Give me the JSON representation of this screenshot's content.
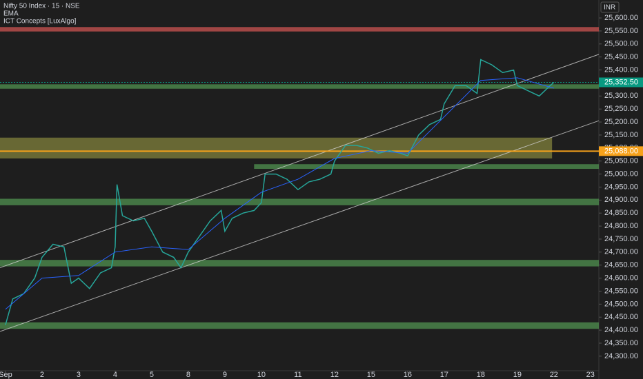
{
  "chart_data": {
    "type": "line",
    "title": "Nifty 50 Index · 15 · NSE",
    "indicators": [
      "EMA",
      "ICT Concepts [LuxAlgo]"
    ],
    "currency": "INR",
    "xlim": [
      -0.15,
      16.23
    ],
    "xticks": [
      {
        "value": 0,
        "label": "Sep"
      },
      {
        "value": 1,
        "label": "2"
      },
      {
        "value": 2,
        "label": "3"
      },
      {
        "value": 3,
        "label": "4"
      },
      {
        "value": 4,
        "label": "5"
      },
      {
        "value": 5,
        "label": "8"
      },
      {
        "value": 6,
        "label": "9"
      },
      {
        "value": 7,
        "label": "10"
      },
      {
        "value": 8,
        "label": "11"
      },
      {
        "value": 9,
        "label": "12"
      },
      {
        "value": 10,
        "label": "15"
      },
      {
        "value": 11,
        "label": "16"
      },
      {
        "value": 12,
        "label": "17"
      },
      {
        "value": 13,
        "label": "18"
      },
      {
        "value": 14,
        "label": "19"
      },
      {
        "value": 15,
        "label": "22"
      },
      {
        "value": 16,
        "label": "23"
      }
    ],
    "ylim": [
      24244,
      25669
    ],
    "yticks": [
      {
        "value": 24300,
        "label": "24,300.00"
      },
      {
        "value": 24350,
        "label": "24,350.00"
      },
      {
        "value": 24400,
        "label": "24,400.00"
      },
      {
        "value": 24450,
        "label": "24,450.00"
      },
      {
        "value": 24500,
        "label": "24,500.00"
      },
      {
        "value": 24550,
        "label": "24,550.00"
      },
      {
        "value": 24600,
        "label": "24,600.00"
      },
      {
        "value": 24650,
        "label": "24,650.00"
      },
      {
        "value": 24700,
        "label": "24,700.00"
      },
      {
        "value": 24750,
        "label": "24,750.00"
      },
      {
        "value": 24800,
        "label": "24,800.00"
      },
      {
        "value": 24850,
        "label": "24,850.00"
      },
      {
        "value": 24900,
        "label": "24,900.00"
      },
      {
        "value": 24950,
        "label": "24,950.00"
      },
      {
        "value": 25000,
        "label": "25,000.00"
      },
      {
        "value": 25050,
        "label": "25,050.00"
      },
      {
        "value": 25100,
        "label": "25,100.00"
      },
      {
        "value": 25150,
        "label": "25,150.00"
      },
      {
        "value": 25200,
        "label": "25,200.00"
      },
      {
        "value": 25250,
        "label": "25,250.00"
      },
      {
        "value": 25300,
        "label": "25,300.00"
      },
      {
        "value": 25350,
        "label": "25,350.00"
      },
      {
        "value": 25400,
        "label": "25,400.00"
      },
      {
        "value": 25450,
        "label": "25,450.00"
      },
      {
        "value": 25500,
        "label": "25,500.00"
      },
      {
        "value": 25550,
        "label": "25,550.00"
      },
      {
        "value": 25600,
        "label": "25,600.00"
      }
    ],
    "series": [
      {
        "name": "Nifty 50 Index",
        "color": "#26a69a",
        "x": [
          0,
          0.2,
          0.5,
          0.8,
          1,
          1.3,
          1.6,
          1.7,
          1.8,
          2,
          2.3,
          2.6,
          2.9,
          3,
          3.05,
          3.2,
          3.5,
          3.8,
          4,
          4.3,
          4.6,
          4.8,
          5,
          5.3,
          5.6,
          5.9,
          6,
          6.2,
          6.5,
          6.8,
          7,
          7.1,
          7.4,
          7.7,
          8,
          8.3,
          8.6,
          8.9,
          9,
          9.3,
          9.6,
          9.9,
          10.2,
          10.5,
          10.8,
          11,
          11.3,
          11.6,
          11.9,
          12,
          12.3,
          12.6,
          12.9,
          13,
          13.3,
          13.6,
          13.9,
          14,
          14.3,
          14.6,
          14.9,
          15
        ],
        "values": [
          24420,
          24520,
          24540,
          24600,
          24680,
          24730,
          24720,
          24650,
          24580,
          24600,
          24560,
          24620,
          24640,
          24720,
          24960,
          24840,
          24820,
          24830,
          24780,
          24700,
          24680,
          24640,
          24700,
          24760,
          24820,
          24860,
          24780,
          24830,
          24850,
          24860,
          24890,
          25000,
          25000,
          24980,
          24940,
          24970,
          24980,
          25000,
          25050,
          25110,
          25110,
          25100,
          25080,
          25090,
          25080,
          25070,
          25150,
          25190,
          25210,
          25270,
          25340,
          25340,
          25310,
          25440,
          25420,
          25390,
          25400,
          25340,
          25320,
          25300,
          25340,
          25352.5
        ]
      },
      {
        "name": "EMA",
        "color": "#2962ff",
        "x": [
          0,
          1,
          2,
          3,
          4,
          5,
          6,
          7,
          8,
          9,
          10,
          11,
          12,
          13,
          14,
          15
        ],
        "values": [
          24480,
          24600,
          24610,
          24700,
          24720,
          24710,
          24830,
          24930,
          24980,
          25060,
          25090,
          25080,
          25220,
          25360,
          25370,
          25330
        ]
      }
    ],
    "trendlines": [
      {
        "color": "#cfcfcf",
        "x": [
          -0.15,
          16.23
        ],
        "y": [
          24640,
          25460
        ]
      },
      {
        "color": "#cfcfcf",
        "x": [
          -0.15,
          16.23
        ],
        "y": [
          24395,
          25205
        ]
      }
    ],
    "zones": [
      {
        "low": 25548,
        "high": 25565,
        "x": [
          -0.15,
          16.23
        ],
        "color": "#c0504d"
      },
      {
        "low": 25328,
        "high": 25345,
        "x": [
          -0.15,
          16.23
        ],
        "color": "#4c8a4c"
      },
      {
        "low": 25060,
        "high": 25140,
        "x": [
          -0.15,
          14.95
        ],
        "color": "#7a7a3a"
      },
      {
        "low": 25020,
        "high": 25038,
        "x": [
          6.8,
          16.23
        ],
        "color": "#4c8a4c"
      },
      {
        "low": 24880,
        "high": 24905,
        "x": [
          -0.15,
          16.23
        ],
        "color": "#4c8a4c"
      },
      {
        "low": 24645,
        "high": 24670,
        "x": [
          -0.15,
          16.23
        ],
        "color": "#4c8a4c"
      },
      {
        "low": 24405,
        "high": 24430,
        "x": [
          -0.15,
          16.23
        ],
        "color": "#4c8a4c"
      }
    ],
    "price_markers": [
      {
        "value": 25352.5,
        "label": "25,352.50",
        "color": "#089981"
      },
      {
        "value": 25088,
        "label": "25,088.00",
        "color": "#f7a21b"
      }
    ]
  }
}
